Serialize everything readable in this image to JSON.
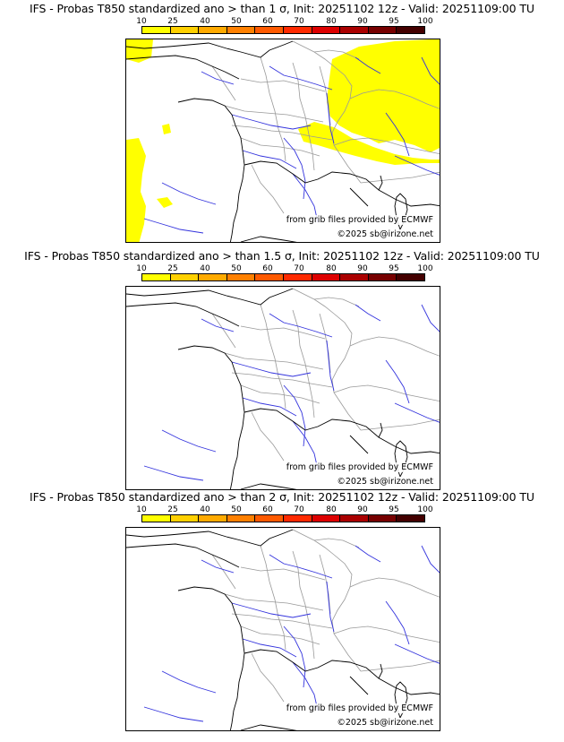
{
  "colors": {
    "yellow": "#ffff00",
    "river": "#3333dd",
    "border": "#999999",
    "coast": "#000000",
    "scale": [
      "#ffff00",
      "#ffd000",
      "#ffaa00",
      "#ff8000",
      "#ff5a00",
      "#ff2a00",
      "#dd0000",
      "#aa0000",
      "#770000",
      "#440000"
    ]
  },
  "scale": {
    "labels": [
      "10",
      "25",
      "40",
      "50",
      "60",
      "70",
      "80",
      "90",
      "95",
      "100"
    ]
  },
  "credits": {
    "source": "from grib files provided by ECMWF",
    "copyright": "©2025 sb@irizone.net"
  },
  "panels": [
    {
      "title": "IFS - Probas T850  standardized ano > than 1 σ, Init: 20251102 12z - Valid: 20251109:00 TU",
      "has_anomaly": true
    },
    {
      "title": "IFS - Probas T850  standardized ano > than 1.5 σ, Init: 20251102 12z - Valid: 20251109:00 TU",
      "has_anomaly": false
    },
    {
      "title": "IFS - Probas T850  standardized ano > than 2 σ, Init: 20251102 12z - Valid: 20251109:00 TU",
      "has_anomaly": false
    }
  ]
}
